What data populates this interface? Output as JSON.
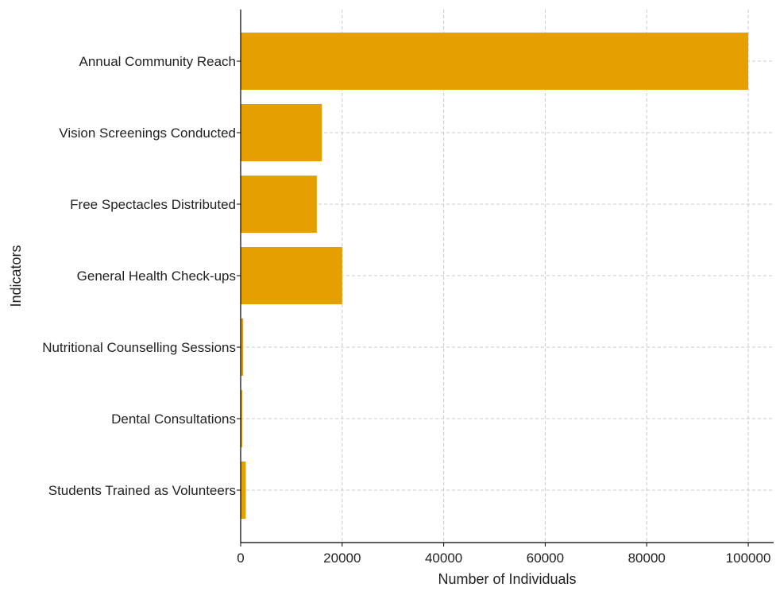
{
  "chart_data": {
    "type": "bar",
    "orientation": "horizontal",
    "categories": [
      "Annual Community Reach",
      "Vision Screenings Conducted",
      "Free Spectacles Distributed",
      "General Health Check-ups",
      "Nutritional Counselling Sessions",
      "Dental Consultations",
      "Students Trained as Volunteers"
    ],
    "values": [
      100000,
      16000,
      15000,
      20000,
      500,
      300,
      1000
    ],
    "title": "",
    "xlabel": "Number of Individuals",
    "ylabel": "Indicators",
    "xlim": [
      0,
      105000
    ],
    "xticks": [
      0,
      20000,
      40000,
      60000,
      80000,
      100000
    ],
    "xtick_labels": [
      "0",
      "20000",
      "40000",
      "60000",
      "80000",
      "100000"
    ],
    "grid": true,
    "bar_color": "#E5A000",
    "legend": "none"
  }
}
